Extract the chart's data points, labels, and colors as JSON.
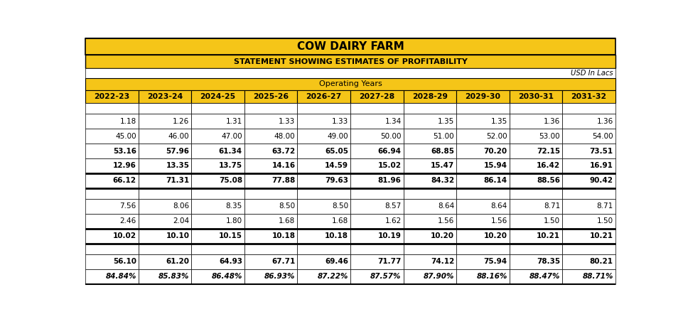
{
  "title": "COW DAIRY FARM",
  "subtitle": "STATEMENT SHOWING ESTIMATES OF PROFITABILITY",
  "unit_label": "USD In Lacs",
  "operating_years_label": "Operating Years",
  "columns": [
    "2022-23",
    "2023-24",
    "2024-25",
    "2025-26",
    "2026-27",
    "2027-28",
    "2028-29",
    "2029-30",
    "2030-31",
    "2031-32"
  ],
  "rows": [
    [
      "1.18",
      "1.26",
      "1.31",
      "1.33",
      "1.33",
      "1.34",
      "1.35",
      "1.35",
      "1.36",
      "1.36"
    ],
    [
      "45.00",
      "46.00",
      "47.00",
      "48.00",
      "49.00",
      "50.00",
      "51.00",
      "52.00",
      "53.00",
      "54.00"
    ],
    [
      "53.16",
      "57.96",
      "61.34",
      "63.72",
      "65.05",
      "66.94",
      "68.85",
      "70.20",
      "72.15",
      "73.51"
    ],
    [
      "12.96",
      "13.35",
      "13.75",
      "14.16",
      "14.59",
      "15.02",
      "15.47",
      "15.94",
      "16.42",
      "16.91"
    ],
    [
      "66.12",
      "71.31",
      "75.08",
      "77.88",
      "79.63",
      "81.96",
      "84.32",
      "86.14",
      "88.56",
      "90.42"
    ],
    [
      "7.56",
      "8.06",
      "8.35",
      "8.50",
      "8.50",
      "8.57",
      "8.64",
      "8.64",
      "8.71",
      "8.71"
    ],
    [
      "2.46",
      "2.04",
      "1.80",
      "1.68",
      "1.68",
      "1.62",
      "1.56",
      "1.56",
      "1.50",
      "1.50"
    ],
    [
      "10.02",
      "10.10",
      "10.15",
      "10.18",
      "10.18",
      "10.19",
      "10.20",
      "10.20",
      "10.21",
      "10.21"
    ],
    [
      "56.10",
      "61.20",
      "64.93",
      "67.71",
      "69.46",
      "71.77",
      "74.12",
      "75.94",
      "78.35",
      "80.21"
    ],
    [
      "84.84%",
      "85.83%",
      "86.48%",
      "86.93%",
      "87.22%",
      "87.57%",
      "87.90%",
      "88.16%",
      "88.47%",
      "88.71%"
    ]
  ],
  "row_bold": [
    false,
    false,
    true,
    true,
    true,
    false,
    false,
    true,
    true,
    true
  ],
  "row_italic": [
    false,
    false,
    false,
    false,
    false,
    false,
    false,
    false,
    false,
    true
  ],
  "golden": "#F5C518",
  "white": "#FFFFFF",
  "black": "#000000",
  "title_fontsize": 11,
  "subtitle_fontsize": 8,
  "data_fontsize": 7.5,
  "col_header_fontsize": 7.8,
  "op_years_fontsize": 8,
  "unit_fontsize": 7.2
}
